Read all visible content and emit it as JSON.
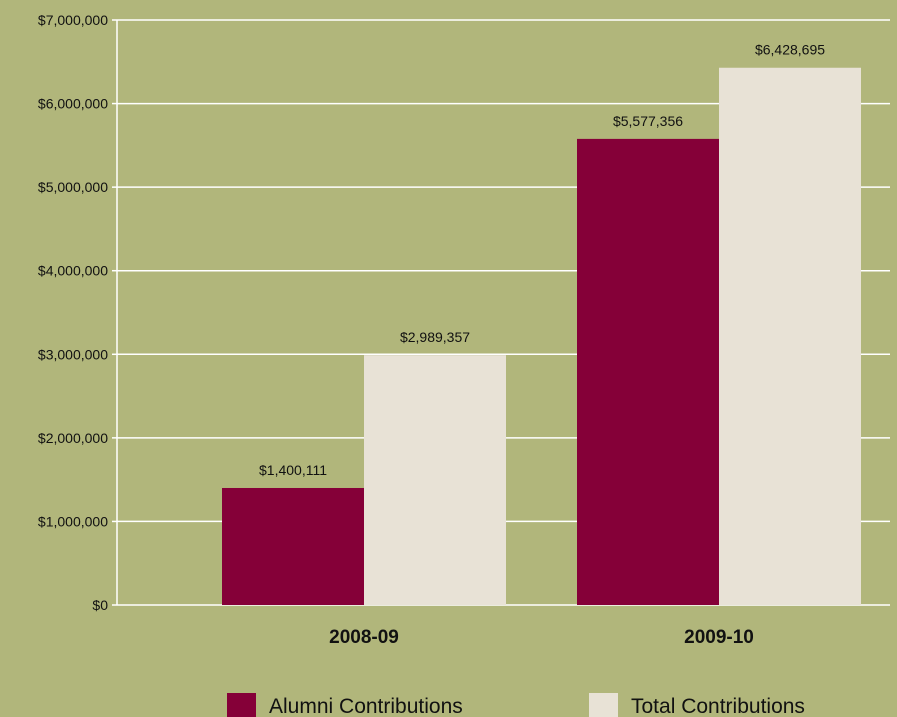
{
  "chart_data": {
    "type": "bar",
    "title": "",
    "xlabel": "",
    "ylabel": "",
    "categories": [
      "2008-09",
      "2009-10"
    ],
    "series": [
      {
        "name": "Alumni Contributions",
        "values": [
          1400111,
          5577356
        ],
        "labels": [
          "$1,400,111",
          "$5,577,356"
        ],
        "color": "#850038"
      },
      {
        "name": "Total Contributions",
        "values": [
          2989357,
          6428695
        ],
        "labels": [
          "$2,989,357",
          "$6,428,695"
        ],
        "color": "#e8e2d6"
      }
    ],
    "ylim": [
      0,
      7000000
    ],
    "ticks": [
      {
        "value": 0,
        "label": "$0"
      },
      {
        "value": 1000000,
        "label": "$1,000,000"
      },
      {
        "value": 2000000,
        "label": "$2,000,000"
      },
      {
        "value": 3000000,
        "label": "$3,000,000"
      },
      {
        "value": 4000000,
        "label": "$4,000,000"
      },
      {
        "value": 5000000,
        "label": "$5,000,000"
      },
      {
        "value": 6000000,
        "label": "$6,000,000"
      },
      {
        "value": 7000000,
        "label": "$7,000,000"
      }
    ],
    "grid": true,
    "legend": "bottom",
    "background": "#b1b67b",
    "gridline_color": "#ffffff"
  }
}
